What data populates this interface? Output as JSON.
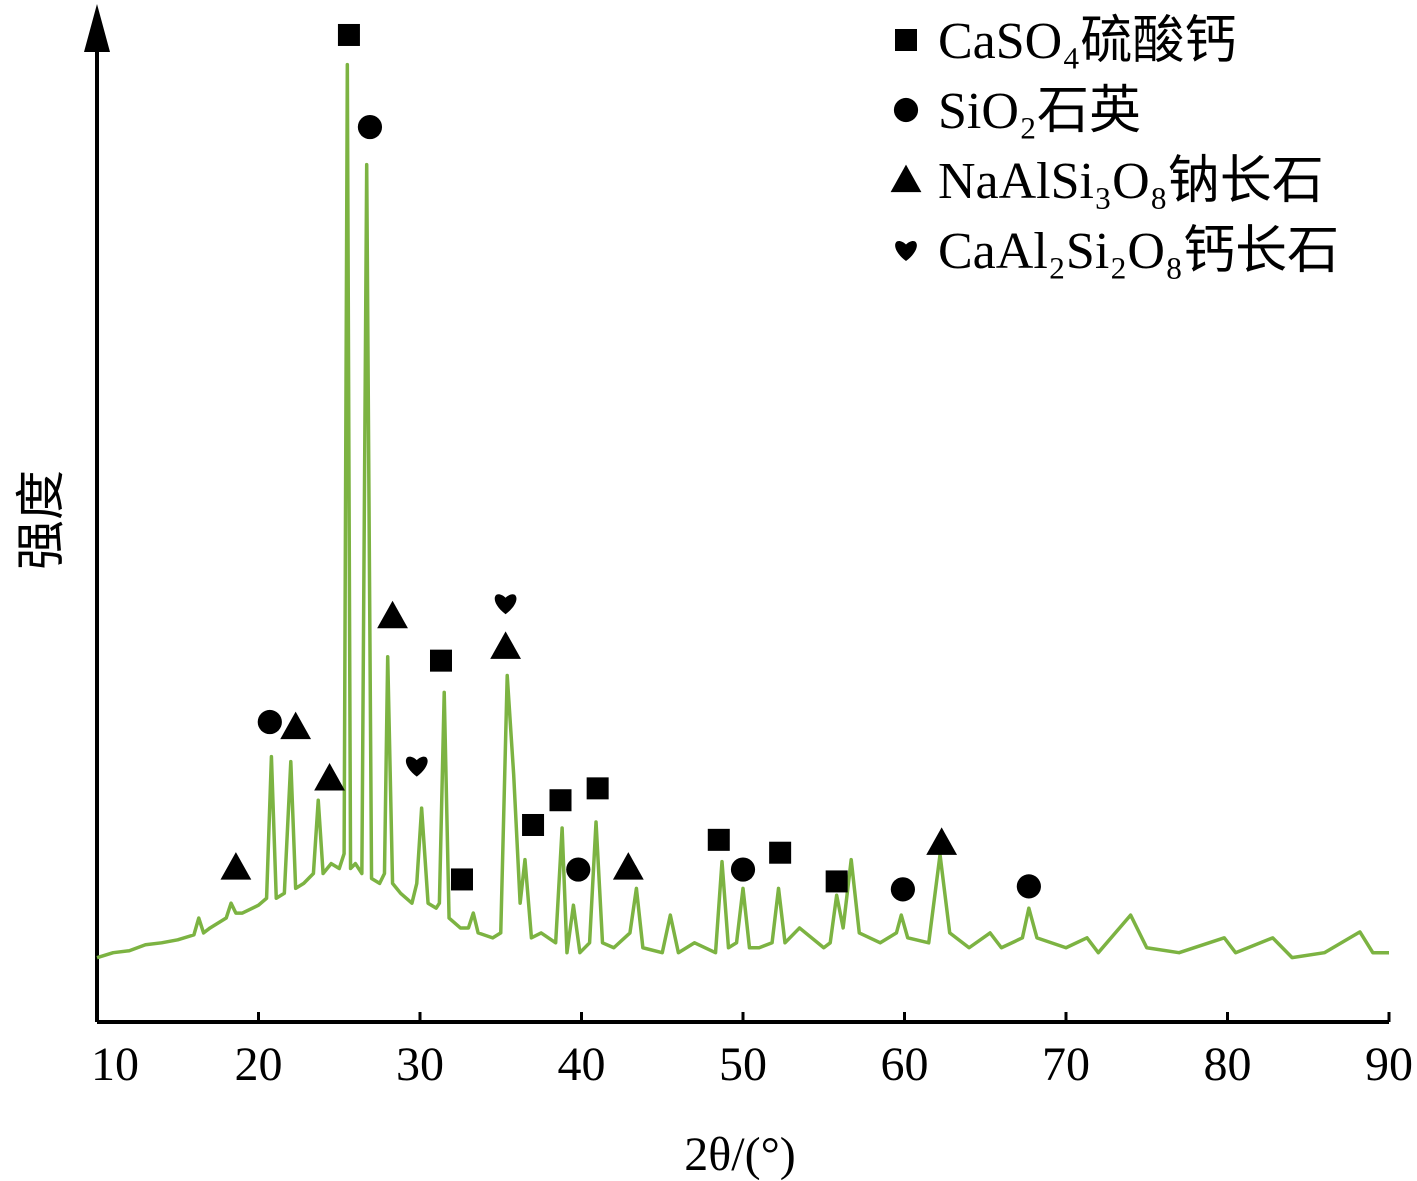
{
  "chart_data": {
    "type": "line",
    "x_label": "2θ/(°)",
    "y_label": "强度",
    "xlim": [
      10,
      90
    ],
    "xticks": [
      10,
      20,
      30,
      40,
      50,
      60,
      70,
      80,
      90
    ],
    "ylim": [
      0,
      100
    ],
    "series": [
      {
        "color": "#7cb342",
        "x": [
          10,
          11,
          12,
          13,
          14,
          15,
          16,
          16.3,
          16.6,
          17,
          18,
          18.3,
          18.6,
          19,
          20,
          20.5,
          20.8,
          21.1,
          21.6,
          22,
          22.3,
          22.8,
          23.4,
          23.7,
          24,
          24.5,
          25,
          25.3,
          25.5,
          25.7,
          26,
          26.4,
          26.7,
          27,
          27.5,
          27.8,
          28,
          28.3,
          28.8,
          29.5,
          29.8,
          30.1,
          30.5,
          31,
          31.2,
          31.5,
          31.8,
          32.5,
          33,
          33.3,
          33.6,
          34.5,
          35,
          35.4,
          35.8,
          36.2,
          36.5,
          36.9,
          37.5,
          38.4,
          38.8,
          39.1,
          39.5,
          39.9,
          40.5,
          40.9,
          41.3,
          42,
          43,
          43.4,
          43.8,
          45,
          45.5,
          46,
          47,
          48.3,
          48.7,
          49.1,
          49.6,
          50,
          50.4,
          51,
          51.8,
          52.2,
          52.6,
          53.5,
          55,
          55.4,
          55.8,
          56.2,
          56.7,
          57.2,
          58.5,
          59.5,
          59.8,
          60.2,
          61.5,
          62.2,
          62.8,
          64,
          65.3,
          66,
          67.3,
          67.7,
          68.2,
          70,
          71.3,
          72,
          74,
          75,
          77,
          79.8,
          80.5,
          82.8,
          84,
          86,
          88.2,
          89,
          90
        ],
        "values": [
          6.5,
          7,
          7.2,
          7.8,
          8,
          8.3,
          8.8,
          10.5,
          9,
          9.5,
          10.5,
          12,
          11,
          11,
          11.8,
          12.5,
          26.8,
          12.5,
          13,
          26.3,
          13.5,
          14,
          15,
          22.4,
          15,
          16,
          15.5,
          17,
          96.7,
          15.5,
          16,
          15,
          86.6,
          14.5,
          14,
          15,
          36.9,
          14,
          13,
          12,
          14,
          21.6,
          12,
          11.5,
          12,
          33.3,
          10.5,
          9.5,
          9.5,
          11,
          9,
          8.5,
          9,
          35,
          25,
          12,
          16.4,
          8.5,
          9,
          8,
          19.6,
          7,
          11.8,
          7,
          8,
          20.2,
          8,
          7.5,
          9,
          13.5,
          7.5,
          7,
          10.8,
          7,
          8,
          7,
          16.2,
          7.5,
          8,
          13.5,
          7.5,
          7.5,
          8,
          13.5,
          8,
          9.5,
          7.5,
          8,
          12.8,
          9.5,
          16.4,
          9,
          8,
          9,
          10.8,
          8.5,
          8,
          16.9,
          9,
          7.5,
          9,
          7.5,
          8.5,
          11.5,
          8.5,
          7.5,
          8.5,
          7,
          10.8,
          7.5,
          7,
          8.5,
          7,
          8.5,
          6.5,
          7,
          9.1,
          7,
          7
        ]
      }
    ],
    "legend": [
      {
        "symbol": "square",
        "label": "CaSO₄硫酸钙"
      },
      {
        "symbol": "circle",
        "label": "SiO₂石英"
      },
      {
        "symbol": "triangle",
        "label": "NaAlSi₃O₈钠长石"
      },
      {
        "symbol": "heart",
        "label": "CaAl₂Si₂O₈钙长石"
      }
    ],
    "annotations": [
      {
        "symbol": "square",
        "x": 25.6,
        "y": 99.7
      },
      {
        "symbol": "circle",
        "x": 26.9,
        "y": 90.4
      },
      {
        "symbol": "triangle",
        "x": 18.6,
        "y": 15.6
      },
      {
        "symbol": "circle",
        "x": 20.7,
        "y": 30.3
      },
      {
        "symbol": "triangle",
        "x": 22.3,
        "y": 29.8
      },
      {
        "symbol": "triangle",
        "x": 24.4,
        "y": 24.6
      },
      {
        "symbol": "triangle",
        "x": 28.3,
        "y": 41.0
      },
      {
        "symbol": "heart",
        "x": 29.8,
        "y": 25.9
      },
      {
        "symbol": "square",
        "x": 31.3,
        "y": 36.5
      },
      {
        "symbol": "square",
        "x": 32.6,
        "y": 14.4
      },
      {
        "symbol": "heart",
        "x": 35.3,
        "y": 42.3
      },
      {
        "symbol": "triangle",
        "x": 35.3,
        "y": 37.9
      },
      {
        "symbol": "square",
        "x": 37.0,
        "y": 19.9
      },
      {
        "symbol": "square",
        "x": 38.7,
        "y": 22.4
      },
      {
        "symbol": "circle",
        "x": 39.8,
        "y": 15.4
      },
      {
        "symbol": "square",
        "x": 41.0,
        "y": 23.6
      },
      {
        "symbol": "triangle",
        "x": 42.9,
        "y": 15.6
      },
      {
        "symbol": "square",
        "x": 48.5,
        "y": 18.4
      },
      {
        "symbol": "circle",
        "x": 50.0,
        "y": 15.4
      },
      {
        "symbol": "square",
        "x": 52.3,
        "y": 17.1
      },
      {
        "symbol": "square",
        "x": 55.8,
        "y": 14.2
      },
      {
        "symbol": "circle",
        "x": 59.9,
        "y": 13.4
      },
      {
        "symbol": "triangle",
        "x": 62.3,
        "y": 18.1
      },
      {
        "symbol": "circle",
        "x": 67.7,
        "y": 13.7
      }
    ]
  }
}
